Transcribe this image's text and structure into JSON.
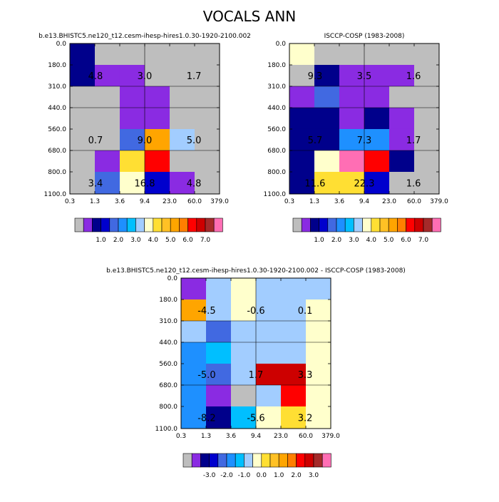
{
  "main_title": "VOCALS ANN",
  "x_ticks": [
    "0.3",
    "1.3",
    "3.6",
    "9.4",
    "23.0",
    "60.0",
    "379.0"
  ],
  "y_ticks": [
    "0.0",
    "180.0",
    "310.0",
    "440.0",
    "560.0",
    "680.0",
    "800.0",
    "1100.0"
  ],
  "color_keys": {
    "gray": "#bebebe",
    "purple": "#8a2be2",
    "navy": "#00008b",
    "darkblue": "#0000cd",
    "royal": "#4169e1",
    "azure": "#1e90ff",
    "sky": "#00bfff",
    "lightblue": "#a2cdff",
    "cream": "#ffffcc",
    "yellow": "#ffdf33",
    "gold": "#ffc125",
    "orange": "#ffa500",
    "darkorange": "#ff7f00",
    "red": "#ff0000",
    "crimson": "#cd0000",
    "brown": "#a52a2a",
    "pink": "#ff6eb4"
  },
  "colorbar_swatches": [
    "gray",
    "purple",
    "navy",
    "darkblue",
    "royal",
    "azure",
    "sky",
    "lightblue",
    "cream",
    "yellow",
    "gold",
    "orange",
    "darkorange",
    "red",
    "crimson",
    "brown",
    "pink"
  ],
  "colorbar_labels_abs": [
    "1.0",
    "2.0",
    "3.0",
    "4.0",
    "5.0",
    "6.0",
    "7.0"
  ],
  "colorbar_labels_diff": [
    "-3.0",
    "-2.0",
    "-1.0",
    "0.0",
    "1.0",
    "2.0",
    "3.0"
  ],
  "chart_data": [
    {
      "type": "heatmap",
      "title": "b.e13.BHISTC5.ne120_t12.cesm-ihesp-hires1.0.30-1920-2100.002",
      "x_ticks": [
        "0.3",
        "1.3",
        "3.6",
        "9.4",
        "23.0",
        "60.0",
        "379.0"
      ],
      "y_ticks": [
        "0.0",
        "180.0",
        "310.0",
        "440.0",
        "560.0",
        "680.0",
        "800.0",
        "1100.0"
      ],
      "cells": [
        [
          "navy",
          "gray",
          "gray",
          "gray",
          "gray",
          "gray"
        ],
        [
          "navy",
          "purple",
          "purple",
          "gray",
          "gray",
          "gray"
        ],
        [
          "gray",
          "gray",
          "purple",
          "purple",
          "gray",
          "gray"
        ],
        [
          "gray",
          "gray",
          "purple",
          "purple",
          "gray",
          "gray"
        ],
        [
          "gray",
          "gray",
          "royal",
          "orange",
          "lightblue",
          "gray"
        ],
        [
          "gray",
          "purple",
          "yellow",
          "red",
          "gray",
          "gray"
        ],
        [
          "gray",
          "royal",
          "cream",
          "darkblue",
          "purple",
          "gray"
        ]
      ],
      "annotations": [
        "4.8",
        "3.0",
        "1.7",
        "0.7",
        "9.0",
        "5.0",
        "3.4",
        "16.8",
        "4.8"
      ]
    },
    {
      "type": "heatmap",
      "title": "ISCCP-COSP (1983-2008)",
      "x_ticks": [
        "0.3",
        "1.3",
        "3.6",
        "9.4",
        "23.0",
        "60.0",
        "379.0"
      ],
      "y_ticks": [
        "0.0",
        "180.0",
        "310.0",
        "440.0",
        "560.0",
        "680.0",
        "800.0",
        "1100.0"
      ],
      "cells": [
        [
          "cream",
          "gray",
          "gray",
          "gray",
          "gray",
          "gray"
        ],
        [
          "gray",
          "navy",
          "purple",
          "purple",
          "purple",
          "gray"
        ],
        [
          "purple",
          "royal",
          "purple",
          "purple",
          "gray",
          "gray"
        ],
        [
          "navy",
          "navy",
          "purple",
          "navy",
          "purple",
          "gray"
        ],
        [
          "navy",
          "navy",
          "azure",
          "azure",
          "purple",
          "gray"
        ],
        [
          "navy",
          "cream",
          "pink",
          "red",
          "navy",
          "gray"
        ],
        [
          "navy",
          "yellow",
          "yellow",
          "darkblue",
          "gray",
          "gray"
        ]
      ],
      "annotations": [
        "9.3",
        "3.5",
        "1.6",
        "5.7",
        "7.3",
        "1.7",
        "11.6",
        "22.3",
        "1.6"
      ]
    },
    {
      "type": "heatmap",
      "title": "b.e13.BHISTC5.ne120_t12.cesm-ihesp-hires1.0.30-1920-2100.002 - ISCCP-COSP (1983-2008)",
      "x_ticks": [
        "0.3",
        "1.3",
        "3.6",
        "9.4",
        "23.0",
        "60.0",
        "379.0"
      ],
      "y_ticks": [
        "0.0",
        "180.0",
        "310.0",
        "440.0",
        "560.0",
        "680.0",
        "800.0",
        "1100.0"
      ],
      "cells": [
        [
          "purple",
          "lightblue",
          "cream",
          "lightblue",
          "lightblue",
          "lightblue"
        ],
        [
          "orange",
          "lightblue",
          "cream",
          "lightblue",
          "lightblue",
          "cream"
        ],
        [
          "lightblue",
          "royal",
          "lightblue",
          "lightblue",
          "lightblue",
          "cream"
        ],
        [
          "azure",
          "sky",
          "lightblue",
          "lightblue",
          "lightblue",
          "cream"
        ],
        [
          "azure",
          "royal",
          "lightblue",
          "crimson",
          "crimson",
          "cream"
        ],
        [
          "azure",
          "purple",
          "gray",
          "lightblue",
          "red",
          "cream"
        ],
        [
          "azure",
          "navy",
          "sky",
          "cream",
          "yellow",
          "cream"
        ]
      ],
      "annotations": [
        "-4.5",
        "-0.6",
        "0.1",
        "-5.0",
        "1.7",
        "3.3",
        "-8.2",
        "-5.6",
        "3.2"
      ]
    }
  ]
}
